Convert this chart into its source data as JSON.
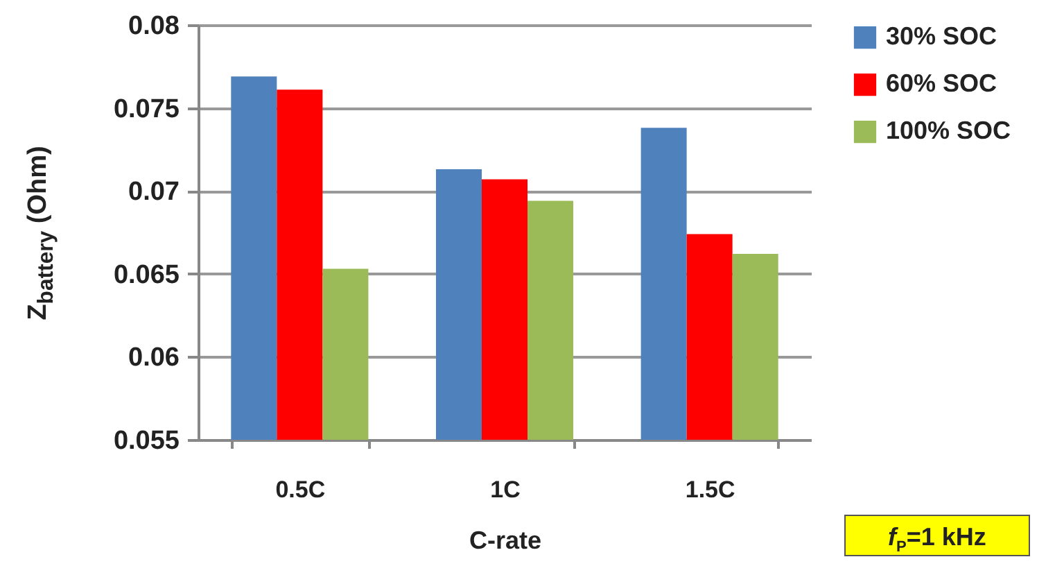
{
  "chart_data": {
    "type": "bar",
    "xlabel": "C-rate",
    "ylabel": "Z$_{battery}$ (Ohm)",
    "categories": [
      "0.5C",
      "1C",
      "1.5C"
    ],
    "series": [
      {
        "name": "30% SOC",
        "color": "#4f81bd",
        "values": [
          0.0769,
          0.0713,
          0.0738
        ]
      },
      {
        "name": "60% SOC",
        "color": "#ff0000",
        "values": [
          0.0761,
          0.0707,
          0.0674
        ]
      },
      {
        "name": "100% SOC",
        "color": "#9bbb59",
        "values": [
          0.0653,
          0.0694,
          0.0662
        ]
      }
    ],
    "ylim": [
      0.055,
      0.08
    ],
    "yticks": [
      0.055,
      0.06,
      0.065,
      0.07,
      0.075,
      0.08
    ],
    "grid": "y",
    "legend": "right",
    "annotations": [
      "f$_{P}$=1 kHz"
    ]
  }
}
